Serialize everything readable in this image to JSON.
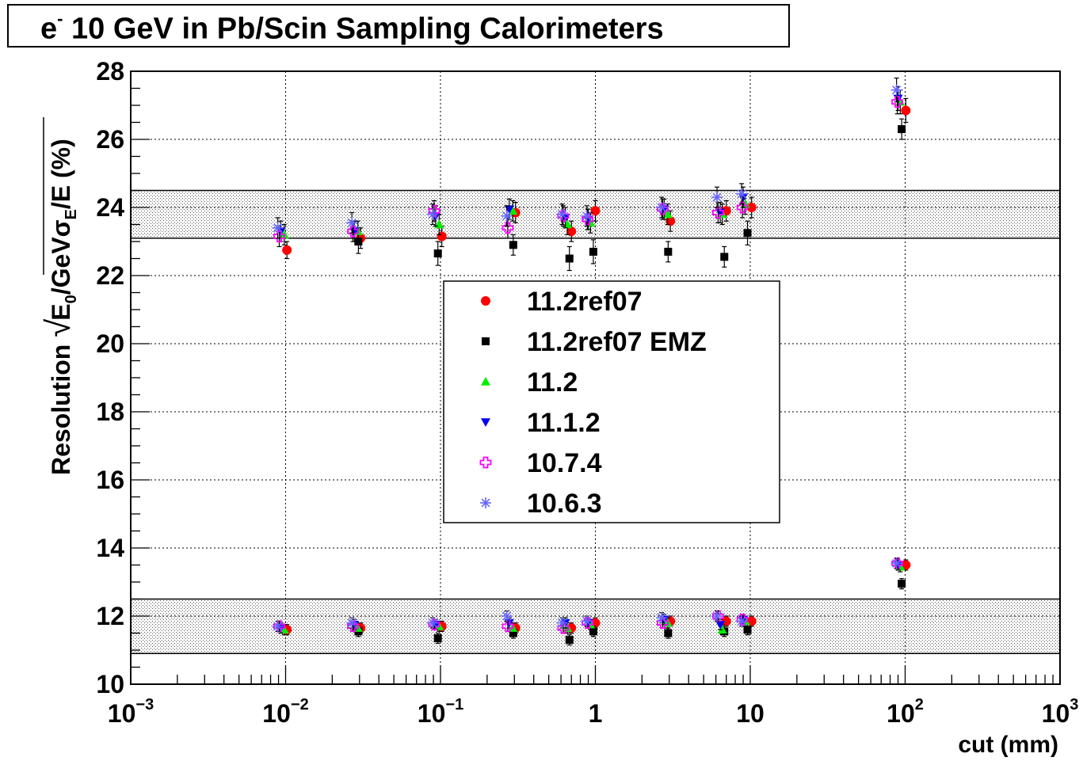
{
  "title": {
    "pre": "e",
    "sup": "-",
    "rest": " 10 GeV in Pb/Scin Sampling Calorimeters"
  },
  "chart_data": {
    "type": "scatter",
    "xscale": "log",
    "xlim": [
      0.001,
      1000
    ],
    "ylim": [
      10,
      28
    ],
    "grid": true,
    "xlabel": "cut (mm)",
    "ylabel": {
      "prefix": "Resolution ",
      "root_e": "E",
      "root_e_sub": "0",
      "root_gev": "/GeV",
      "sigma": "σ",
      "sigma_sub": "E",
      "suffix": "/E (%)"
    },
    "xticks": [
      {
        "v": 0.001,
        "base": "10",
        "exp": "−3"
      },
      {
        "v": 0.01,
        "base": "10",
        "exp": "−2"
      },
      {
        "v": 0.1,
        "base": "10",
        "exp": "−1"
      },
      {
        "v": 1,
        "base": "1",
        "exp": ""
      },
      {
        "v": 10,
        "base": "10",
        "exp": ""
      },
      {
        "v": 100,
        "base": "10",
        "exp": "2"
      },
      {
        "v": 1000,
        "base": "10",
        "exp": "3"
      }
    ],
    "yticks": [
      10,
      12,
      14,
      16,
      18,
      20,
      22,
      24,
      26,
      28
    ],
    "bands": [
      [
        23.1,
        24.5
      ],
      [
        10.9,
        12.5
      ]
    ],
    "legend_placement": "center",
    "series": [
      {
        "name": "11.2ref07",
        "marker": "circle",
        "color": "#ff0000",
        "points": [
          [
            0.0102,
            22.75,
            0.25
          ],
          [
            0.0305,
            23.1,
            0.3
          ],
          [
            0.102,
            23.15,
            0.3
          ],
          [
            0.305,
            23.85,
            0.3
          ],
          [
            0.7,
            23.3,
            0.3
          ],
          [
            1.0,
            23.9,
            0.3
          ],
          [
            3.05,
            23.6,
            0.3
          ],
          [
            7.0,
            23.9,
            0.3
          ],
          [
            10.2,
            24.0,
            0.3
          ],
          [
            101,
            26.85,
            0.35
          ],
          [
            0.0102,
            11.6,
            0.15
          ],
          [
            0.0305,
            11.65,
            0.15
          ],
          [
            0.102,
            11.7,
            0.15
          ],
          [
            0.305,
            11.65,
            0.15
          ],
          [
            0.7,
            11.65,
            0.15
          ],
          [
            1.0,
            11.8,
            0.15
          ],
          [
            3.05,
            11.85,
            0.15
          ],
          [
            7.0,
            11.85,
            0.15
          ],
          [
            10.2,
            11.85,
            0.15
          ],
          [
            101,
            13.5,
            0.15
          ]
        ]
      },
      {
        "name": "11.2ref07 EMZ",
        "marker": "square",
        "color": "#000000",
        "points": [
          [
            0.0295,
            23.0,
            0.35
          ],
          [
            0.0962,
            22.65,
            0.35
          ],
          [
            0.295,
            22.9,
            0.3
          ],
          [
            0.68,
            22.5,
            0.35
          ],
          [
            0.97,
            22.7,
            0.35
          ],
          [
            2.95,
            22.7,
            0.3
          ],
          [
            6.8,
            22.55,
            0.3
          ],
          [
            9.6,
            23.25,
            0.35
          ],
          [
            95,
            26.3,
            0.3
          ],
          [
            0.0295,
            11.55,
            0.15
          ],
          [
            0.0962,
            11.35,
            0.15
          ],
          [
            0.295,
            11.5,
            0.15
          ],
          [
            0.68,
            11.3,
            0.15
          ],
          [
            0.97,
            11.55,
            0.15
          ],
          [
            2.95,
            11.5,
            0.15
          ],
          [
            6.8,
            11.55,
            0.15
          ],
          [
            9.6,
            11.6,
            0.15
          ],
          [
            95,
            12.95,
            0.15
          ]
        ]
      },
      {
        "name": "11.2",
        "marker": "triangle-up",
        "color": "#00ee00",
        "points": [
          [
            0.0098,
            23.2,
            0.3
          ],
          [
            0.0293,
            23.3,
            0.3
          ],
          [
            0.098,
            23.5,
            0.3
          ],
          [
            0.293,
            23.9,
            0.3
          ],
          [
            0.66,
            23.5,
            0.3
          ],
          [
            0.93,
            23.55,
            0.3
          ],
          [
            2.93,
            23.8,
            0.3
          ],
          [
            6.6,
            23.8,
            0.3
          ],
          [
            9.3,
            24.1,
            0.3
          ],
          [
            93,
            27.1,
            0.35
          ],
          [
            0.0098,
            11.6,
            0.15
          ],
          [
            0.0293,
            11.65,
            0.15
          ],
          [
            0.098,
            11.7,
            0.15
          ],
          [
            0.293,
            11.65,
            0.15
          ],
          [
            0.66,
            11.65,
            0.15
          ],
          [
            0.93,
            11.75,
            0.15
          ],
          [
            2.93,
            11.8,
            0.15
          ],
          [
            6.6,
            11.6,
            0.15
          ],
          [
            9.3,
            11.85,
            0.15
          ],
          [
            93,
            13.45,
            0.15
          ]
        ]
      },
      {
        "name": "11.1.2",
        "marker": "triangle-down",
        "color": "#0000ee",
        "points": [
          [
            0.0093,
            23.3,
            0.3
          ],
          [
            0.0278,
            23.3,
            0.3
          ],
          [
            0.093,
            23.75,
            0.3
          ],
          [
            0.278,
            23.95,
            0.3
          ],
          [
            0.64,
            23.7,
            0.3
          ],
          [
            0.9,
            23.65,
            0.3
          ],
          [
            2.78,
            23.95,
            0.3
          ],
          [
            6.4,
            23.85,
            0.3
          ],
          [
            9.0,
            24.3,
            0.3
          ],
          [
            90,
            27.2,
            0.35
          ],
          [
            0.0093,
            11.65,
            0.15
          ],
          [
            0.0278,
            11.75,
            0.15
          ],
          [
            0.093,
            11.75,
            0.15
          ],
          [
            0.278,
            11.8,
            0.15
          ],
          [
            0.64,
            11.8,
            0.15
          ],
          [
            0.9,
            11.8,
            0.15
          ],
          [
            2.78,
            11.9,
            0.15
          ],
          [
            6.4,
            11.75,
            0.15
          ],
          [
            9.0,
            11.9,
            0.15
          ],
          [
            90,
            13.5,
            0.15
          ]
        ]
      },
      {
        "name": "10.7.4",
        "marker": "open-cross",
        "color": "#ff00ff",
        "points": [
          [
            0.0091,
            23.15,
            0.3
          ],
          [
            0.0272,
            23.3,
            0.3
          ],
          [
            0.091,
            23.9,
            0.3
          ],
          [
            0.272,
            23.4,
            0.3
          ],
          [
            0.62,
            23.75,
            0.3
          ],
          [
            0.89,
            23.65,
            0.3
          ],
          [
            2.72,
            23.95,
            0.3
          ],
          [
            6.2,
            23.85,
            0.3
          ],
          [
            8.9,
            24.0,
            0.3
          ],
          [
            89,
            27.1,
            0.35
          ],
          [
            0.0091,
            11.7,
            0.15
          ],
          [
            0.0272,
            11.7,
            0.15
          ],
          [
            0.091,
            11.75,
            0.15
          ],
          [
            0.272,
            11.7,
            0.15
          ],
          [
            0.62,
            11.65,
            0.15
          ],
          [
            0.89,
            11.8,
            0.15
          ],
          [
            2.72,
            11.8,
            0.15
          ],
          [
            6.2,
            12.0,
            0.15
          ],
          [
            8.9,
            11.9,
            0.15
          ],
          [
            89,
            13.55,
            0.15
          ]
        ]
      },
      {
        "name": "10.6.3",
        "marker": "star",
        "color": "#6666ff",
        "points": [
          [
            0.0089,
            23.4,
            0.3
          ],
          [
            0.0268,
            23.55,
            0.3
          ],
          [
            0.089,
            23.8,
            0.3
          ],
          [
            0.268,
            23.75,
            0.3
          ],
          [
            0.61,
            23.8,
            0.3
          ],
          [
            0.88,
            23.75,
            0.3
          ],
          [
            2.68,
            24.0,
            0.3
          ],
          [
            6.1,
            24.3,
            0.3
          ],
          [
            8.8,
            24.4,
            0.3
          ],
          [
            88,
            27.45,
            0.35
          ],
          [
            0.0089,
            11.7,
            0.15
          ],
          [
            0.0268,
            11.8,
            0.15
          ],
          [
            0.089,
            11.8,
            0.15
          ],
          [
            0.268,
            12.0,
            0.15
          ],
          [
            0.61,
            11.8,
            0.15
          ],
          [
            0.88,
            11.85,
            0.15
          ],
          [
            2.68,
            11.95,
            0.15
          ],
          [
            6.1,
            12.0,
            0.15
          ],
          [
            8.8,
            11.85,
            0.15
          ],
          [
            88,
            13.55,
            0.15
          ]
        ]
      }
    ]
  }
}
